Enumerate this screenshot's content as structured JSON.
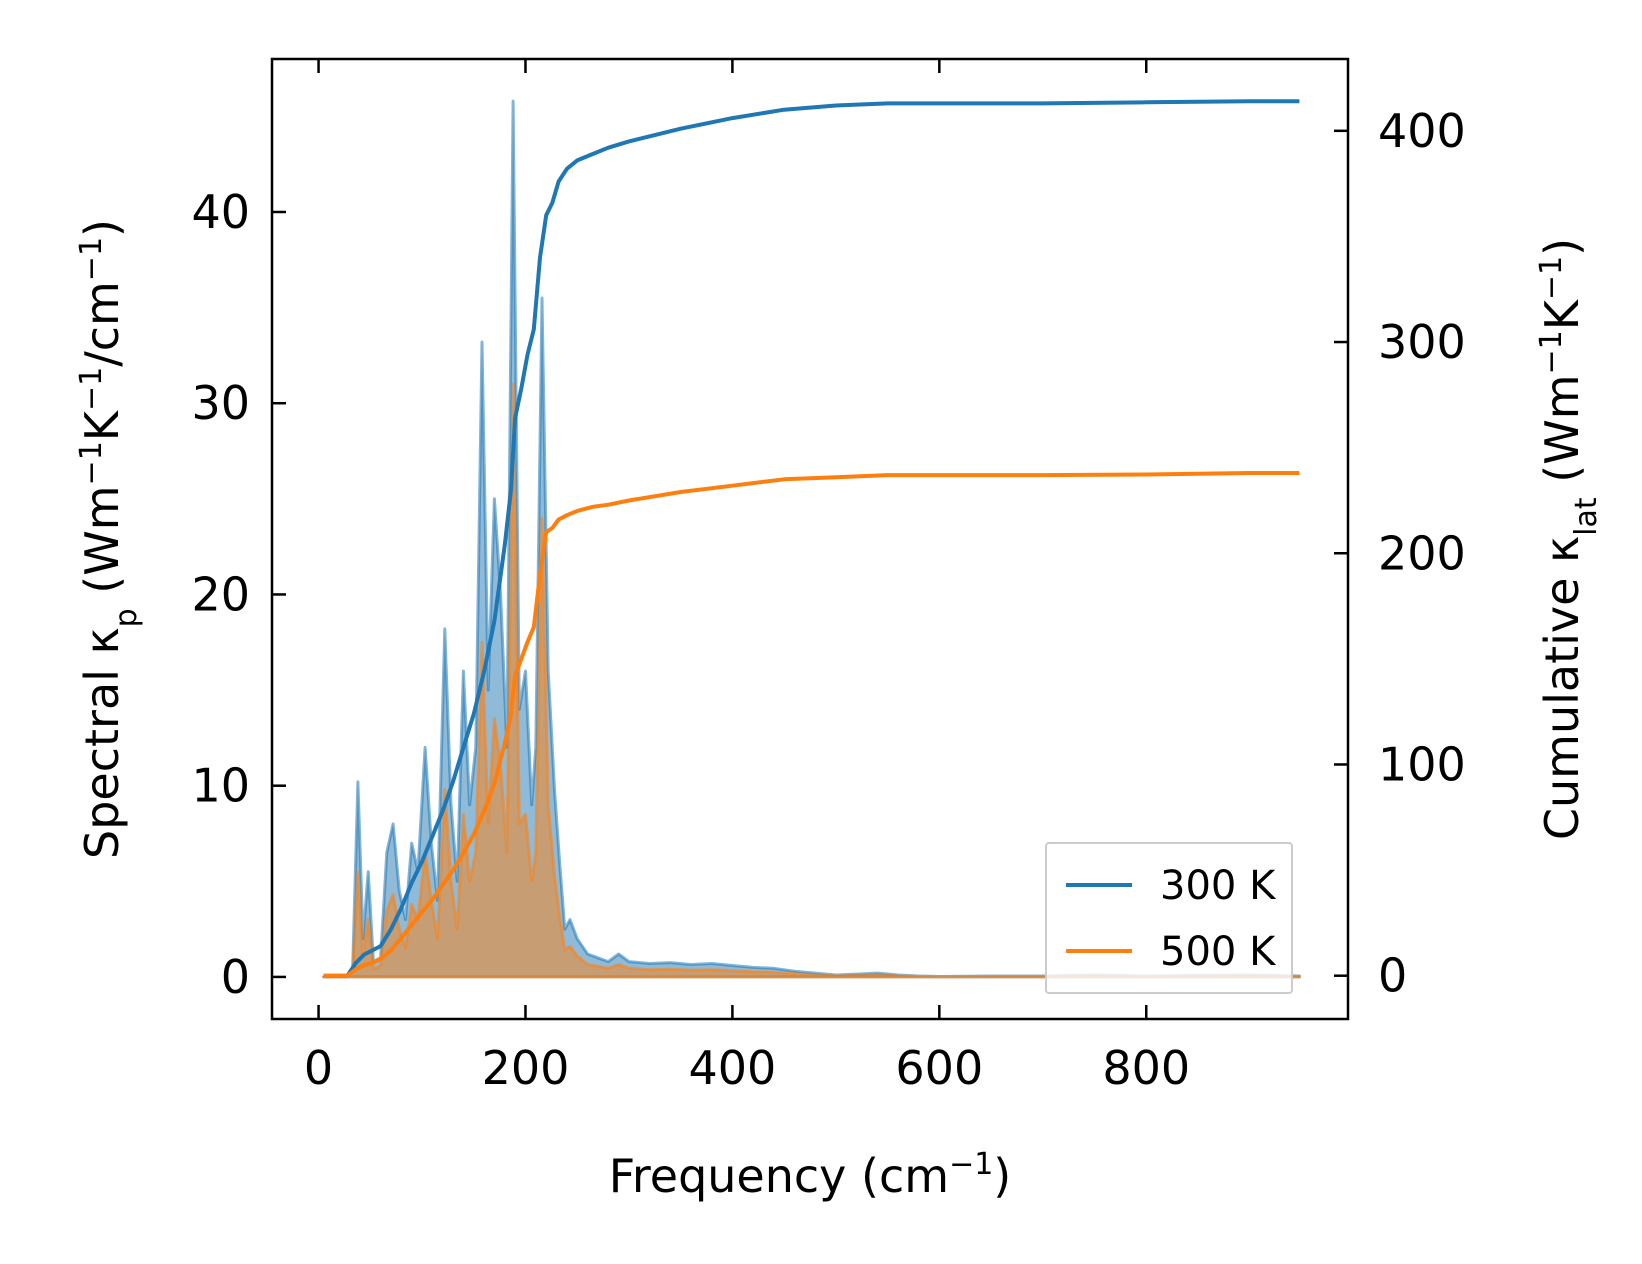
{
  "chart_data": {
    "type": "line",
    "x_axis": {
      "label_main": "Frequency (cm",
      "label_sup": "−1",
      "label_end": ")",
      "lim": [
        -45,
        995
      ],
      "ticks": [
        0,
        200,
        400,
        600,
        800
      ],
      "tick_labels": [
        "0",
        "200",
        "400",
        "600",
        "800"
      ]
    },
    "y_left": {
      "label_parts": [
        {
          "t": "Spectral κ",
          "s": ""
        },
        {
          "t": "p",
          "s": "sub"
        },
        {
          "t": " (Wm",
          "s": ""
        },
        {
          "t": "−1",
          "s": "sup"
        },
        {
          "t": "K",
          "s": ""
        },
        {
          "t": "−1",
          "s": "sup"
        },
        {
          "t": "/cm",
          "s": ""
        },
        {
          "t": "−1",
          "s": "sup"
        },
        {
          "t": ")",
          "s": ""
        }
      ],
      "lim": [
        -2.2,
        48
      ],
      "ticks": [
        0,
        10,
        20,
        30,
        40
      ],
      "tick_labels": [
        "0",
        "10",
        "20",
        "30",
        "40"
      ]
    },
    "y_right": {
      "label_parts": [
        {
          "t": "Cumulative κ",
          "s": ""
        },
        {
          "t": "lat",
          "s": "sub"
        },
        {
          "t": " (Wm",
          "s": ""
        },
        {
          "t": "−1",
          "s": "sup"
        },
        {
          "t": "K",
          "s": ""
        },
        {
          "t": "−1",
          "s": "sup"
        },
        {
          "t": ")",
          "s": ""
        }
      ],
      "lim": [
        -20.5,
        434
      ],
      "ticks": [
        0,
        100,
        200,
        300,
        400
      ],
      "tick_labels": [
        "0",
        "100",
        "200",
        "300",
        "400"
      ]
    },
    "legend": {
      "placement": "lower-right",
      "entries": [
        {
          "label": "300 K",
          "color": "#1f77b4"
        },
        {
          "label": "500 K",
          "color": "#ff7f0e"
        }
      ]
    },
    "series": [
      {
        "name": "300 K",
        "color": "#1f77b4",
        "spectral": [
          [
            5,
            0
          ],
          [
            28,
            0
          ],
          [
            33,
            0.5
          ],
          [
            38,
            10.2
          ],
          [
            43,
            2
          ],
          [
            48,
            5.5
          ],
          [
            53,
            0.8
          ],
          [
            60,
            1
          ],
          [
            66,
            6.5
          ],
          [
            72,
            8
          ],
          [
            78,
            4.5
          ],
          [
            84,
            3
          ],
          [
            90,
            7
          ],
          [
            96,
            5.5
          ],
          [
            103,
            12
          ],
          [
            109,
            7
          ],
          [
            115,
            4
          ],
          [
            122,
            18.2
          ],
          [
            128,
            9
          ],
          [
            134,
            5
          ],
          [
            140,
            16
          ],
          [
            146,
            9
          ],
          [
            152,
            12
          ],
          [
            158,
            33.2
          ],
          [
            164,
            15
          ],
          [
            170,
            25
          ],
          [
            176,
            20
          ],
          [
            182,
            12
          ],
          [
            188,
            45.8
          ],
          [
            194,
            14
          ],
          [
            200,
            16
          ],
          [
            206,
            9
          ],
          [
            210,
            12
          ],
          [
            216,
            35.5
          ],
          [
            222,
            16
          ],
          [
            228,
            9.8
          ],
          [
            233,
            6
          ],
          [
            238,
            2.5
          ],
          [
            243,
            3
          ],
          [
            250,
            2
          ],
          [
            260,
            1.2
          ],
          [
            270,
            1
          ],
          [
            280,
            0.8
          ],
          [
            290,
            1.2
          ],
          [
            300,
            0.8
          ],
          [
            320,
            0.7
          ],
          [
            340,
            0.75
          ],
          [
            360,
            0.65
          ],
          [
            380,
            0.7
          ],
          [
            400,
            0.6
          ],
          [
            420,
            0.5
          ],
          [
            440,
            0.45
          ],
          [
            460,
            0.3
          ],
          [
            480,
            0.2
          ],
          [
            500,
            0.1
          ],
          [
            520,
            0.15
          ],
          [
            540,
            0.2
          ],
          [
            560,
            0.1
          ],
          [
            580,
            0.05
          ],
          [
            600,
            0.02
          ],
          [
            650,
            0.05
          ],
          [
            700,
            0.05
          ],
          [
            750,
            0.1
          ],
          [
            800,
            0.05
          ],
          [
            850,
            0.08
          ],
          [
            900,
            0.1
          ],
          [
            948,
            0.05
          ]
        ],
        "cumulative": [
          [
            5,
            0
          ],
          [
            28,
            0
          ],
          [
            36,
            6
          ],
          [
            44,
            10
          ],
          [
            52,
            12
          ],
          [
            60,
            14
          ],
          [
            70,
            22
          ],
          [
            80,
            32
          ],
          [
            90,
            44
          ],
          [
            100,
            54
          ],
          [
            110,
            66
          ],
          [
            120,
            78
          ],
          [
            130,
            92
          ],
          [
            140,
            108
          ],
          [
            150,
            124
          ],
          [
            160,
            144
          ],
          [
            170,
            168
          ],
          [
            180,
            204
          ],
          [
            186,
            230
          ],
          [
            190,
            264
          ],
          [
            196,
            278
          ],
          [
            202,
            294
          ],
          [
            208,
            306
          ],
          [
            214,
            340
          ],
          [
            220,
            360
          ],
          [
            226,
            366
          ],
          [
            232,
            376
          ],
          [
            240,
            382
          ],
          [
            250,
            386
          ],
          [
            265,
            389
          ],
          [
            280,
            392
          ],
          [
            300,
            395
          ],
          [
            350,
            401
          ],
          [
            400,
            406
          ],
          [
            450,
            410
          ],
          [
            500,
            412
          ],
          [
            550,
            413
          ],
          [
            600,
            413
          ],
          [
            700,
            413
          ],
          [
            800,
            413.5
          ],
          [
            900,
            414
          ],
          [
            948,
            414
          ]
        ]
      },
      {
        "name": "500 K",
        "color": "#ff7f0e",
        "spectral": [
          [
            5,
            0
          ],
          [
            28,
            0
          ],
          [
            33,
            0.3
          ],
          [
            38,
            5.5
          ],
          [
            43,
            1
          ],
          [
            48,
            3
          ],
          [
            53,
            0.4
          ],
          [
            60,
            0.6
          ],
          [
            66,
            3.5
          ],
          [
            72,
            4.3
          ],
          [
            78,
            2.5
          ],
          [
            84,
            1.5
          ],
          [
            90,
            3.8
          ],
          [
            96,
            3
          ],
          [
            103,
            6.5
          ],
          [
            109,
            4
          ],
          [
            115,
            2
          ],
          [
            122,
            9.8
          ],
          [
            128,
            5
          ],
          [
            134,
            2.5
          ],
          [
            140,
            8.5
          ],
          [
            146,
            5
          ],
          [
            152,
            6.5
          ],
          [
            158,
            17.5
          ],
          [
            164,
            8
          ],
          [
            170,
            13.5
          ],
          [
            176,
            11
          ],
          [
            182,
            6.5
          ],
          [
            188,
            31
          ],
          [
            194,
            8
          ],
          [
            200,
            8.5
          ],
          [
            206,
            5
          ],
          [
            210,
            6.5
          ],
          [
            216,
            24
          ],
          [
            222,
            9
          ],
          [
            228,
            5.3
          ],
          [
            233,
            3.2
          ],
          [
            238,
            1.4
          ],
          [
            243,
            1.6
          ],
          [
            250,
            1.1
          ],
          [
            260,
            0.65
          ],
          [
            270,
            0.55
          ],
          [
            280,
            0.45
          ],
          [
            290,
            0.65
          ],
          [
            300,
            0.45
          ],
          [
            320,
            0.38
          ],
          [
            340,
            0.4
          ],
          [
            360,
            0.35
          ],
          [
            380,
            0.38
          ],
          [
            400,
            0.33
          ],
          [
            420,
            0.27
          ],
          [
            440,
            0.24
          ],
          [
            460,
            0.16
          ],
          [
            480,
            0.11
          ],
          [
            500,
            0.05
          ],
          [
            520,
            0.08
          ],
          [
            540,
            0.11
          ],
          [
            560,
            0.05
          ],
          [
            580,
            0.03
          ],
          [
            600,
            0.01
          ],
          [
            650,
            0.03
          ],
          [
            700,
            0.03
          ],
          [
            750,
            0.05
          ],
          [
            800,
            0.03
          ],
          [
            850,
            0.04
          ],
          [
            900,
            0.05
          ],
          [
            948,
            0.03
          ]
        ],
        "cumulative": [
          [
            5,
            0
          ],
          [
            28,
            0
          ],
          [
            36,
            3
          ],
          [
            44,
            5
          ],
          [
            52,
            6
          ],
          [
            60,
            8
          ],
          [
            70,
            12
          ],
          [
            80,
            18
          ],
          [
            90,
            24
          ],
          [
            100,
            30
          ],
          [
            110,
            36
          ],
          [
            120,
            43
          ],
          [
            130,
            50
          ],
          [
            140,
            58
          ],
          [
            150,
            67
          ],
          [
            160,
            78
          ],
          [
            170,
            91
          ],
          [
            180,
            110
          ],
          [
            186,
            124
          ],
          [
            190,
            142
          ],
          [
            196,
            150
          ],
          [
            202,
            158
          ],
          [
            208,
            165
          ],
          [
            214,
            190
          ],
          [
            220,
            210
          ],
          [
            226,
            212
          ],
          [
            232,
            216
          ],
          [
            240,
            218
          ],
          [
            250,
            220
          ],
          [
            265,
            222
          ],
          [
            280,
            223
          ],
          [
            300,
            225
          ],
          [
            350,
            229
          ],
          [
            400,
            232
          ],
          [
            450,
            235
          ],
          [
            500,
            236
          ],
          [
            550,
            237
          ],
          [
            600,
            237
          ],
          [
            700,
            237
          ],
          [
            800,
            237.3
          ],
          [
            900,
            238
          ],
          [
            948,
            238
          ]
        ]
      }
    ]
  }
}
